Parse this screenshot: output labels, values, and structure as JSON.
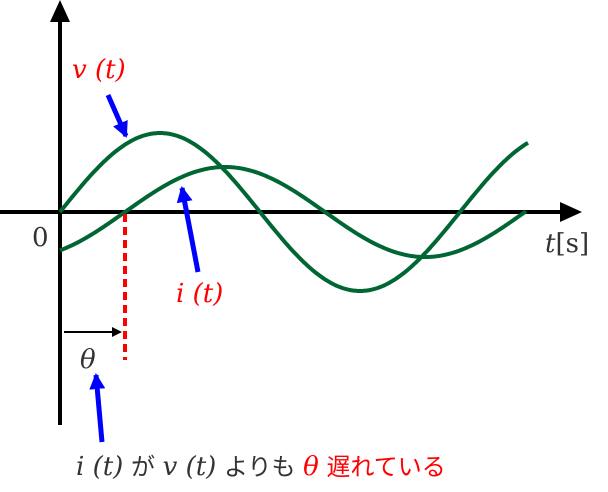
{
  "colors": {
    "axis": "#000000",
    "curve": "#006633",
    "label": "#ff0000",
    "pointer": "#0000ff",
    "text": "#333333",
    "dashed": "#ff0000"
  },
  "labels": {
    "origin": "0",
    "t_axis_var": "t",
    "t_axis_unit": "[s]",
    "voltage": "v (t)",
    "current": "i (t)",
    "theta": "θ"
  },
  "caption": {
    "part1": "i (t)",
    "part2": "が",
    "part3": "v (t)",
    "part4": "よりも",
    "part5": "θ",
    "part6": "遅れている"
  }
}
